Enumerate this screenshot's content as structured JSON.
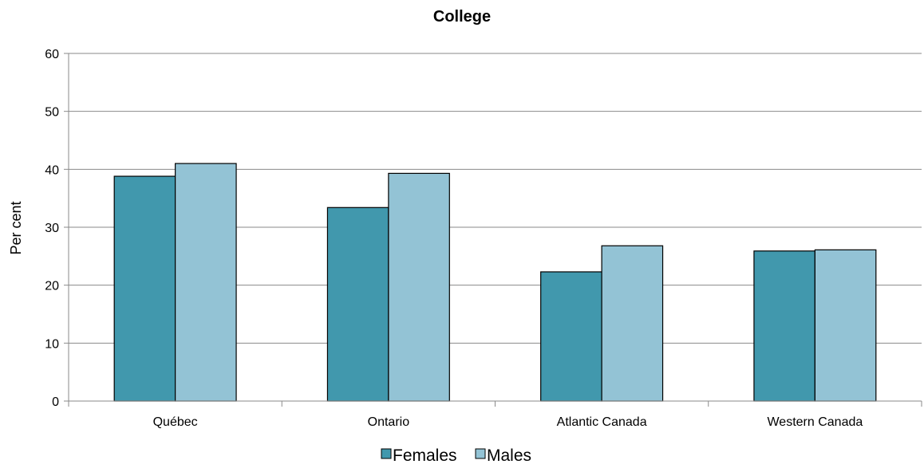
{
  "chart_data": {
    "type": "bar",
    "title": "College",
    "xlabel": "",
    "ylabel": "Per cent",
    "categories": [
      "Québec",
      "Ontario",
      "Atlantic Canada",
      "Western Canada"
    ],
    "series": [
      {
        "name": "Females",
        "values": [
          38.8,
          33.4,
          22.3,
          25.9
        ],
        "color": "#4198ad"
      },
      {
        "name": "Males",
        "values": [
          41.0,
          39.3,
          26.8,
          26.1
        ],
        "color": "#93c3d5"
      }
    ],
    "ylim": [
      0,
      60
    ],
    "yticks": [
      0,
      10,
      20,
      30,
      40,
      50,
      60
    ],
    "grid": true,
    "legend_position": "bottom"
  }
}
